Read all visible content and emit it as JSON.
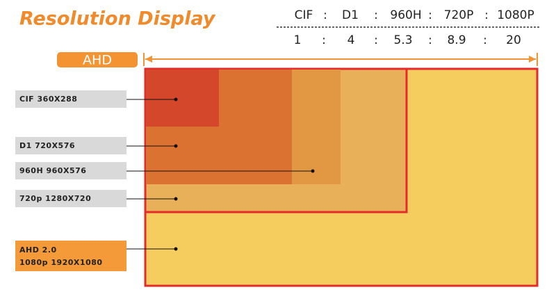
{
  "title": "Resolution Display",
  "ratio_table": {
    "formats": [
      "CIF",
      "D1",
      "960H",
      "720P",
      "1080P"
    ],
    "ratios": [
      "1",
      "4",
      "5.3",
      "8.9",
      "20"
    ],
    "separator": ":"
  },
  "badge": "AHD",
  "resolutions": [
    {
      "lines": [
        "CIF 360X288"
      ]
    },
    {
      "lines": [
        "D1 720X576"
      ]
    },
    {
      "lines": [
        "960H 960X576"
      ]
    },
    {
      "lines": [
        "720p 1280X720"
      ]
    },
    {
      "lines": [
        "AHD 2.0",
        "1080p 1920X1080"
      ]
    }
  ]
}
